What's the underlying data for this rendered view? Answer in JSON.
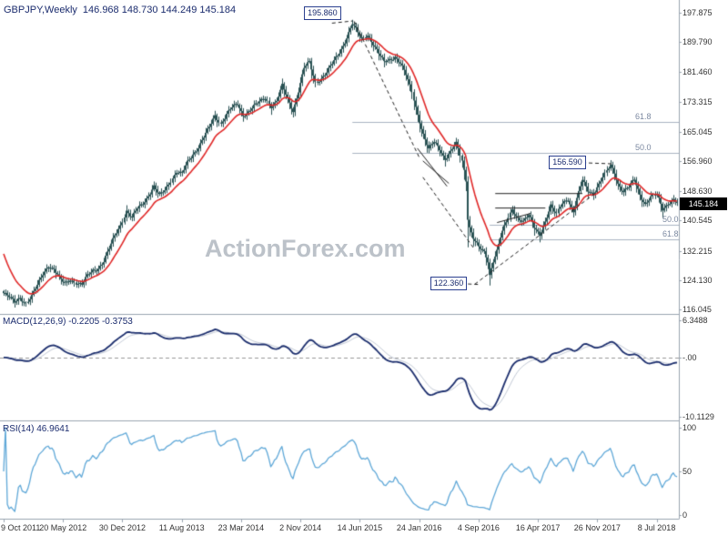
{
  "header": {
    "symbol_line": "GBPJPY,Weekly",
    "ohlc": "146.968 148.730 144.249 145.184"
  },
  "watermark": "ActionForex.com",
  "macd_label": "MACD(12,26,9) -0.2205 -0.3753",
  "rsi_label": "RSI(14) 46.9641",
  "price_tag": "145.184",
  "annotations": {
    "peak": {
      "label": "195.860",
      "week": 172,
      "price": 196.5
    },
    "high2": {
      "label": "156.590",
      "week": 304,
      "price": 156.59
    },
    "low": {
      "label": "122.360",
      "week": 240,
      "price": 123.3
    }
  },
  "fib_levels": {
    "upper": [
      {
        "label": "61.8",
        "price": 167.83,
        "from_week": 188
      },
      {
        "label": "50.0",
        "price": 159.11,
        "from_week": 188
      }
    ],
    "lower": [
      {
        "label": "50.0",
        "price": 139.48,
        "from_week": 262
      },
      {
        "label": "61.8",
        "price": 135.43,
        "from_week": 262
      }
    ]
  },
  "annotation_lines": {
    "dashed": [
      [
        177,
        195.0,
        188,
        195.6
      ],
      [
        189,
        195.5,
        224,
        158.0
      ],
      [
        226,
        152.5,
        254,
        132.5
      ],
      [
        254,
        123.0,
        320,
        148.5
      ],
      [
        240,
        123.3,
        257,
        122.9
      ],
      [
        312,
        156.5,
        328,
        156.2
      ]
    ],
    "solid": [
      [
        223,
        160.5,
        239,
        150.0
      ],
      [
        226,
        157.0,
        240,
        150.8
      ],
      [
        265,
        148.0,
        312,
        148.0
      ],
      [
        265,
        144.0,
        292,
        144.0
      ],
      [
        266,
        140.0,
        284,
        142.5
      ]
    ]
  },
  "colors": {
    "background": "#ffffff",
    "candle": "#2a5254",
    "ma_line": "#e02828",
    "macd_line": "#1d2f6e",
    "macd_signal": "#c3cad6",
    "rsi_line": "#5fa8d8",
    "axis_text": "#333333",
    "panel_border": "#9aa5b1",
    "fib_line": "#a9b4c2",
    "fib_text": "#7b88a0",
    "annotation_border": "#2b3f8f",
    "annotation_text": "#1b2c6e",
    "header_text": "#1b2c6e",
    "watermark_text": "#bcc2c9",
    "price_tag_bg": "#000000",
    "price_tag_text": "#ffffff",
    "trendline": "#222222",
    "zero_line": "#999999"
  },
  "chart_data": [
    {
      "type": "candlestick",
      "symbol": "GBPJPY",
      "timeframe": "Weekly",
      "open": "146.968",
      "high": "148.730",
      "low": "144.249",
      "close": "145.184",
      "y_ticks": [
        "197.875",
        "189.790",
        "181.460",
        "173.315",
        "165.045",
        "156.960",
        "148.630",
        "140.545",
        "132.215",
        "124.130",
        "116.045"
      ],
      "x_tick_labels": [
        "9 Oct 2011",
        "20 May 2012",
        "30 Dec 2012",
        "11 Aug 2013",
        "23 Mar 2014",
        "2 Nov 2014",
        "14 Jun 2015",
        "24 Jan 2016",
        "4 Sep 2016",
        "16 Apr 2017",
        "26 Nov 2017",
        "8 Jul 2018"
      ],
      "x_tick_weeks": [
        0,
        32,
        64,
        96,
        128,
        160,
        192,
        224,
        256,
        288,
        320,
        352
      ],
      "weeks_total": 364,
      "close_keyframes": [
        [
          0,
          120.5
        ],
        [
          3,
          119.2
        ],
        [
          6,
          118.0
        ],
        [
          9,
          119.6
        ],
        [
          12,
          117.8
        ],
        [
          15,
          119.5
        ],
        [
          18,
          122.5
        ],
        [
          21,
          126.0
        ],
        [
          24,
          128.3
        ],
        [
          27,
          127.0
        ],
        [
          30,
          124.5
        ],
        [
          33,
          123.2
        ],
        [
          36,
          124.6
        ],
        [
          39,
          123.4
        ],
        [
          42,
          122.6
        ],
        [
          45,
          125.2
        ],
        [
          48,
          127.0
        ],
        [
          51,
          127.6
        ],
        [
          54,
          129.2
        ],
        [
          57,
          132.5
        ],
        [
          60,
          136.5
        ],
        [
          63,
          139.5
        ],
        [
          66,
          143.2
        ],
        [
          69,
          141.0
        ],
        [
          72,
          143.8
        ],
        [
          75,
          145.5
        ],
        [
          78,
          147.6
        ],
        [
          81,
          149.8
        ],
        [
          84,
          147.2
        ],
        [
          87,
          149.0
        ],
        [
          90,
          151.8
        ],
        [
          93,
          154.0
        ],
        [
          96,
          153.2
        ],
        [
          99,
          156.5
        ],
        [
          102,
          159.0
        ],
        [
          105,
          161.0
        ],
        [
          108,
          163.5
        ],
        [
          111,
          166.0
        ],
        [
          114,
          169.5
        ],
        [
          117,
          167.5
        ],
        [
          120,
          170.0
        ],
        [
          123,
          171.5
        ],
        [
          126,
          172.5
        ],
        [
          129,
          169.8
        ],
        [
          132,
          170.8
        ],
        [
          135,
          172.0
        ],
        [
          138,
          173.0
        ],
        [
          141,
          174.5
        ],
        [
          144,
          172.3
        ],
        [
          147,
          173.5
        ],
        [
          150,
          177.5
        ],
        [
          153,
          174.0
        ],
        [
          156,
          171.0
        ],
        [
          159,
          176.5
        ],
        [
          162,
          182.5
        ],
        [
          165,
          184.0
        ],
        [
          168,
          178.8
        ],
        [
          171,
          180.0
        ],
        [
          174,
          181.5
        ],
        [
          177,
          183.5
        ],
        [
          180,
          186.0
        ],
        [
          183,
          189.0
        ],
        [
          186,
          192.5
        ],
        [
          188,
          194.8
        ],
        [
          190,
          193.0
        ],
        [
          193,
          190.5
        ],
        [
          196,
          192.0
        ],
        [
          199,
          189.5
        ],
        [
          202,
          186.5
        ],
        [
          205,
          184.0
        ],
        [
          208,
          185.0
        ],
        [
          211,
          186.0
        ],
        [
          214,
          184.0
        ],
        [
          217,
          180.5
        ],
        [
          220,
          176.0
        ],
        [
          223,
          170.0
        ],
        [
          226,
          164.5
        ],
        [
          229,
          160.0
        ],
        [
          232,
          162.0
        ],
        [
          235,
          160.5
        ],
        [
          238,
          157.8
        ],
        [
          241,
          159.5
        ],
        [
          244,
          161.5
        ],
        [
          247,
          157.0
        ],
        [
          249,
          151.8
        ],
        [
          250,
          141.5
        ],
        [
          251,
          139.0
        ],
        [
          253,
          136.0
        ],
        [
          256,
          133.0
        ],
        [
          259,
          131.5
        ],
        [
          261,
          129.3
        ],
        [
          262,
          125.6
        ],
        [
          264,
          129.8
        ],
        [
          266,
          132.5
        ],
        [
          268,
          136.0
        ],
        [
          271,
          139.8
        ],
        [
          274,
          143.5
        ],
        [
          277,
          141.5
        ],
        [
          280,
          140.5
        ],
        [
          283,
          141.8
        ],
        [
          286,
          138.5
        ],
        [
          289,
          136.8
        ],
        [
          292,
          140.5
        ],
        [
          295,
          144.5
        ],
        [
          298,
          142.0
        ],
        [
          301,
          145.5
        ],
        [
          304,
          146.8
        ],
        [
          307,
          143.0
        ],
        [
          310,
          148.0
        ],
        [
          312,
          151.5
        ],
        [
          315,
          149.0
        ],
        [
          318,
          148.2
        ],
        [
          321,
          150.5
        ],
        [
          324,
          153.0
        ],
        [
          327,
          155.8
        ],
        [
          329,
          154.0
        ],
        [
          331,
          151.0
        ],
        [
          334,
          148.5
        ],
        [
          337,
          149.5
        ],
        [
          340,
          151.8
        ],
        [
          343,
          148.0
        ],
        [
          346,
          145.2
        ],
        [
          349,
          146.8
        ],
        [
          352,
          147.5
        ],
        [
          355,
          143.8
        ],
        [
          358,
          145.5
        ],
        [
          361,
          146.3
        ],
        [
          363,
          145.2
        ]
      ],
      "overlays": [
        {
          "name": "moving-average",
          "color": "#e02828"
        }
      ]
    },
    {
      "type": "line",
      "name": "MACD",
      "params": "12,26,9",
      "current_values": "-0.2205 -0.3753",
      "y_ticks": [
        "6.3488",
        "-.00",
        "-10.1129"
      ],
      "derived_from": "close_keyframes"
    },
    {
      "type": "line",
      "name": "RSI",
      "params": "14",
      "current_value": "46.9641",
      "y_ticks": [
        "100",
        "50",
        "0"
      ],
      "derived_from": "close_keyframes"
    }
  ]
}
